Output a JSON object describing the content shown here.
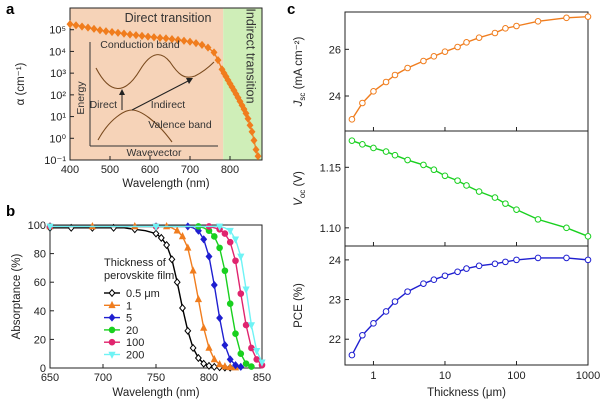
{
  "panels": [
    {
      "label": "a"
    },
    {
      "label": "b"
    },
    {
      "label": "c"
    }
  ],
  "chart_data": [
    {
      "id": "a",
      "type": "line",
      "xlabel": "Wavelength (nm)",
      "ylabel": "α (cm⁻¹)",
      "y_scale": "log",
      "xlim": [
        400,
        880
      ],
      "ylim": [
        0.1,
        1000000
      ],
      "x_ticks": [
        "400",
        "500",
        "600",
        "700",
        "800"
      ],
      "y_ticks": [
        "10⁻¹",
        "10⁰",
        "10¹",
        "10²",
        "10³",
        "10⁴",
        "10⁵"
      ],
      "regions": [
        {
          "name": "Direct transition",
          "x": [
            400,
            783
          ],
          "color": "#f6d3b8"
        },
        {
          "name": "Indirect transition",
          "x": [
            783,
            880
          ],
          "color": "#cfeeb8"
        }
      ],
      "series": [
        {
          "color": "#f07d1e",
          "x": [
            400,
            415,
            430,
            445,
            460,
            475,
            490,
            505,
            520,
            535,
            550,
            565,
            580,
            595,
            610,
            625,
            640,
            655,
            670,
            685,
            700,
            715,
            730,
            745,
            760,
            770,
            780,
            785,
            790,
            795,
            800,
            805,
            810,
            815,
            820,
            825,
            830,
            835,
            840,
            845,
            850,
            855,
            860,
            865,
            870
          ],
          "y": [
            180000,
            160000,
            140000,
            125000,
            110000,
            95000,
            85000,
            78000,
            72000,
            66000,
            60000,
            56000,
            52000,
            48000,
            45000,
            42000,
            40000,
            37000,
            34000,
            31000,
            28000,
            24000,
            20000,
            15000,
            9000,
            4000,
            1500,
            1000,
            700,
            480,
            330,
            230,
            160,
            110,
            75,
            50,
            33,
            22,
            14,
            8,
            4,
            2,
            0.8,
            0.3,
            0.15
          ]
        }
      ],
      "inset": {
        "xlabel": "Wavevector",
        "ylabel": "Energy",
        "labels": [
          "Conduction band",
          "Valence band",
          "Direct",
          "Indirect"
        ]
      }
    },
    {
      "id": "b",
      "type": "line",
      "xlabel": "Wavelength (nm)",
      "ylabel": "Absorptance (%)",
      "xlim": [
        650,
        850
      ],
      "ylim": [
        0,
        100
      ],
      "x_ticks": [
        "650",
        "700",
        "750",
        "800",
        "850"
      ],
      "y_ticks": [
        "0",
        "20",
        "40",
        "60",
        "80",
        "100"
      ],
      "legend_title": "Thickness of perovskite film",
      "legend_position": "center-left",
      "series": [
        {
          "name": "0.5 μm",
          "color": "#000000",
          "marker": "diamond-open",
          "x": [
            650,
            660,
            670,
            680,
            690,
            700,
            710,
            720,
            730,
            740,
            750,
            755,
            760,
            765,
            770,
            775,
            780,
            785,
            790,
            795,
            800,
            805,
            810,
            815,
            820
          ],
          "y": [
            98,
            98,
            98,
            98,
            98,
            98,
            98,
            98,
            97,
            96,
            94,
            91,
            86,
            76,
            60,
            42,
            26,
            14,
            7,
            3,
            1.5,
            0.8,
            0.5,
            0.3,
            0.2
          ]
        },
        {
          "name": "1",
          "color": "#f07d1e",
          "marker": "triangle",
          "x": [
            650,
            670,
            690,
            710,
            730,
            750,
            760,
            765,
            770,
            775,
            780,
            785,
            790,
            795,
            800,
            805,
            810,
            815,
            820,
            825
          ],
          "y": [
            99,
            99,
            99,
            99,
            99,
            99,
            99,
            98,
            96,
            92,
            84,
            68,
            48,
            28,
            14,
            6,
            2.5,
            1,
            0.5,
            0.3
          ]
        },
        {
          "name": "5",
          "color": "#1f1fd0",
          "marker": "diamond",
          "x": [
            650,
            700,
            750,
            770,
            780,
            785,
            790,
            795,
            800,
            805,
            810,
            815,
            820,
            825,
            830
          ],
          "y": [
            99,
            99,
            99,
            99,
            99,
            98,
            96,
            90,
            78,
            58,
            35,
            16,
            6,
            2,
            0.8
          ]
        },
        {
          "name": "20",
          "color": "#19d01f",
          "marker": "circle",
          "x": [
            650,
            700,
            750,
            780,
            790,
            795,
            800,
            805,
            810,
            815,
            820,
            825,
            830,
            835,
            840
          ],
          "y": [
            99,
            99,
            99,
            99,
            99,
            98,
            96,
            92,
            84,
            68,
            45,
            24,
            10,
            3,
            1
          ]
        },
        {
          "name": "100",
          "color": "#e0246e",
          "marker": "circle",
          "x": [
            650,
            700,
            750,
            790,
            800,
            805,
            810,
            815,
            820,
            825,
            830,
            835,
            840,
            845,
            850
          ],
          "y": [
            99,
            99,
            99,
            99,
            99,
            98,
            97,
            94,
            88,
            75,
            52,
            30,
            14,
            6,
            2
          ]
        },
        {
          "name": "200",
          "color": "#6ff3f5",
          "marker": "triangle-down",
          "x": [
            650,
            700,
            750,
            800,
            810,
            815,
            820,
            825,
            830,
            835,
            840,
            845,
            850
          ],
          "y": [
            99,
            99,
            99,
            99,
            99,
            98,
            96,
            90,
            78,
            55,
            30,
            12,
            4
          ]
        }
      ]
    },
    {
      "id": "c-jsc",
      "type": "line",
      "ylabel": "Jsc (mA cm⁻²)",
      "x_scale": "log",
      "xlim": [
        0.4,
        1000
      ],
      "ylim": [
        22.5,
        27.6
      ],
      "y_ticks": [
        "24",
        "26"
      ],
      "series": [
        {
          "color": "#f07d1e",
          "x": [
            0.5,
            0.7,
            1,
            1.5,
            2,
            3,
            5,
            7,
            10,
            15,
            20,
            30,
            50,
            70,
            100,
            200,
            500,
            1000
          ],
          "y": [
            23.0,
            23.7,
            24.2,
            24.6,
            24.9,
            25.2,
            25.5,
            25.7,
            25.9,
            26.1,
            26.3,
            26.5,
            26.7,
            26.9,
            27.0,
            27.2,
            27.35,
            27.4
          ]
        }
      ]
    },
    {
      "id": "c-voc",
      "type": "line",
      "ylabel": "Voc (V)",
      "x_scale": "log",
      "xlim": [
        0.4,
        1000
      ],
      "ylim": [
        1.085,
        1.18
      ],
      "y_ticks": [
        "1.10",
        "1.15"
      ],
      "series": [
        {
          "color": "#19d01f",
          "x": [
            0.5,
            0.7,
            1,
            1.5,
            2,
            3,
            5,
            7,
            10,
            15,
            20,
            30,
            50,
            70,
            100,
            200,
            500,
            1000
          ],
          "y": [
            1.172,
            1.169,
            1.166,
            1.163,
            1.16,
            1.156,
            1.152,
            1.148,
            1.143,
            1.139,
            1.135,
            1.13,
            1.125,
            1.12,
            1.115,
            1.107,
            1.1,
            1.093
          ]
        }
      ]
    },
    {
      "id": "c-pce",
      "type": "line",
      "xlabel": "Thickness (μm)",
      "ylabel": "PCE (%)",
      "x_scale": "log",
      "xlim": [
        0.4,
        1000
      ],
      "ylim": [
        21.35,
        24.35
      ],
      "x_ticks": [
        "1",
        "10",
        "100",
        "1000"
      ],
      "y_ticks": [
        "22",
        "23",
        "24"
      ],
      "series": [
        {
          "color": "#1f1fd0",
          "x": [
            0.5,
            0.7,
            1,
            1.5,
            2,
            3,
            5,
            7,
            10,
            15,
            20,
            30,
            50,
            70,
            100,
            200,
            500,
            1000
          ],
          "y": [
            21.6,
            22.1,
            22.4,
            22.7,
            22.95,
            23.2,
            23.4,
            23.5,
            23.6,
            23.7,
            23.78,
            23.85,
            23.9,
            23.95,
            24.0,
            24.05,
            24.05,
            24.0
          ]
        }
      ]
    }
  ]
}
